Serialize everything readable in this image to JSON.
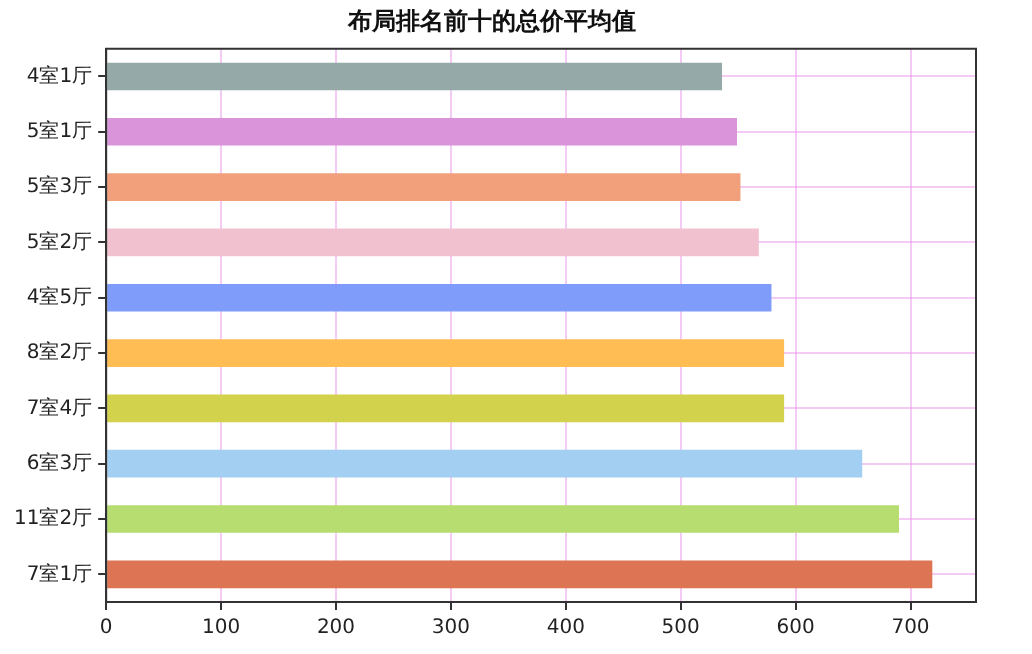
{
  "chart_data": {
    "type": "bar",
    "orientation": "horizontal",
    "title": "布局排名前十的总价平均值",
    "categories": [
      "4室1厅",
      "5室1厅",
      "5室3厅",
      "5室2厅",
      "4室5厅",
      "8室2厅",
      "7室4厅",
      "6室3厅",
      "11室2厅",
      "7室1厅"
    ],
    "values": [
      536,
      549,
      552,
      568,
      579,
      590,
      590,
      658,
      690,
      719
    ],
    "colors": [
      "#95aaa8",
      "#da94da",
      "#f2a07b",
      "#f2c1cf",
      "#7f9cfa",
      "#ffbd54",
      "#d3d24d",
      "#a3cff2",
      "#b7dc70",
      "#dd7453"
    ],
    "xlim": [
      0,
      757
    ],
    "xticks": [
      0,
      100,
      200,
      300,
      400,
      500,
      600,
      700
    ],
    "grid": true
  }
}
